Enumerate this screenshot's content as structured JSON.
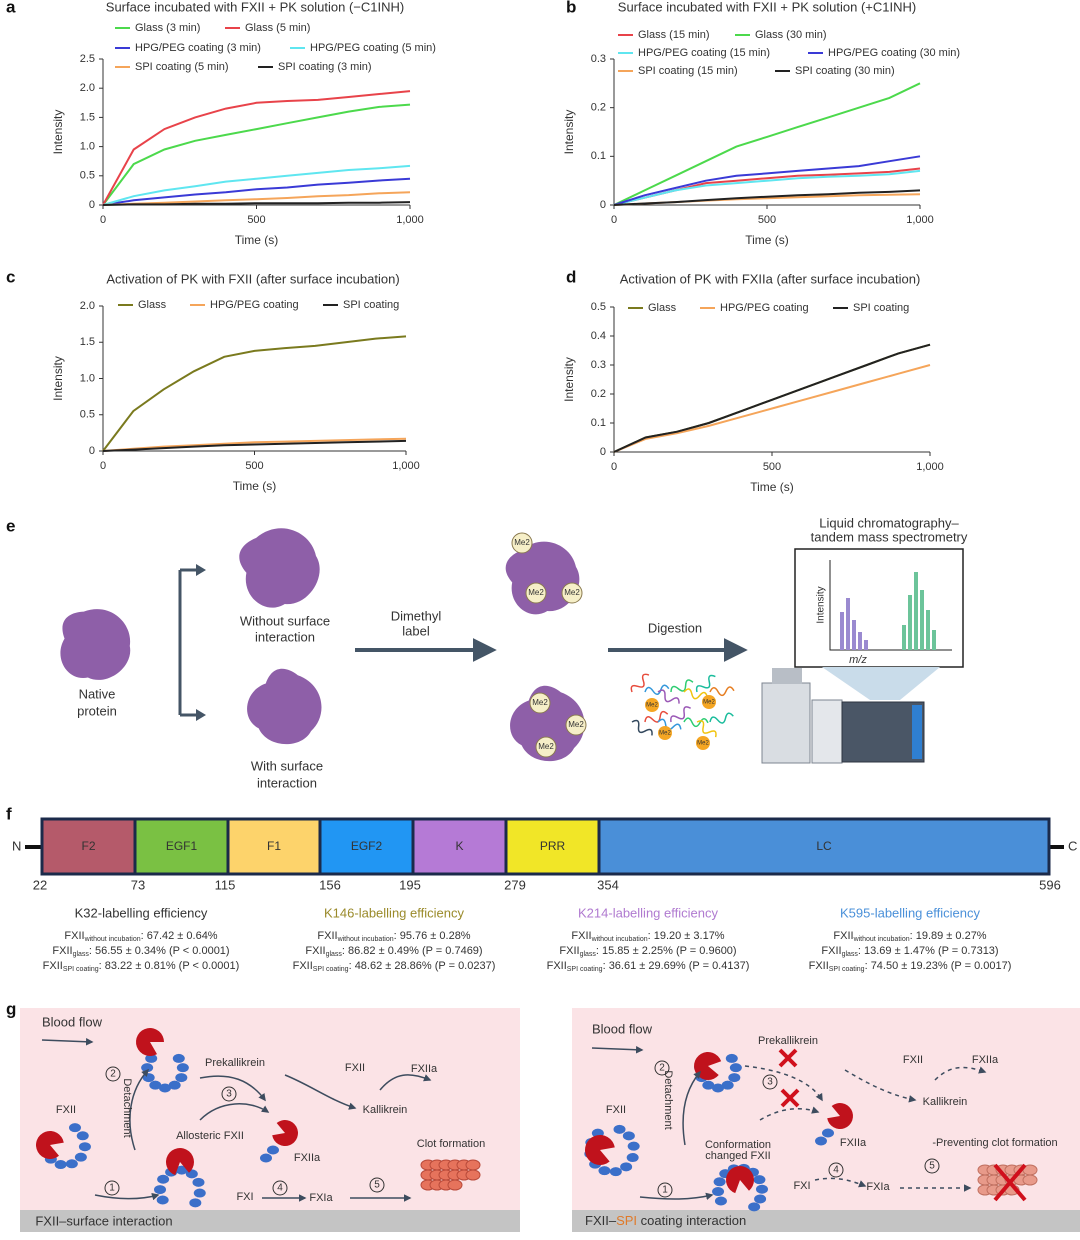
{
  "panel_labels": [
    "a",
    "b",
    "c",
    "d",
    "e",
    "f",
    "g"
  ],
  "chart_data": [
    {
      "type": "line",
      "title": "Surface incubated with FXII + PK solution (−C1INH)",
      "xlabel": "Time (s)",
      "ylabel": "Intensity",
      "x": [
        0,
        100,
        200,
        300,
        400,
        500,
        600,
        700,
        800,
        900,
        1000
      ],
      "xlim": [
        0,
        1000
      ],
      "xticks": [
        0,
        500,
        {
          "value": 1000,
          "label": "1,000"
        }
      ],
      "ylim": [
        0,
        2.5
      ],
      "yticks": [
        0,
        0.5,
        {
          "value": 1,
          "label": "1.0"
        },
        1.5,
        {
          "value": 2,
          "label": "2.0"
        },
        2.5
      ],
      "series": [
        {
          "name": "Glass (3 min)",
          "color": "#4cd94c",
          "values": [
            0,
            0.7,
            0.95,
            1.1,
            1.2,
            1.3,
            1.4,
            1.5,
            1.6,
            1.68,
            1.72
          ]
        },
        {
          "name": "Glass (5 min)",
          "color": "#e8434a",
          "values": [
            0,
            0.95,
            1.3,
            1.5,
            1.65,
            1.75,
            1.78,
            1.8,
            1.85,
            1.9,
            1.95
          ]
        },
        {
          "name": "HPG/PEG coating (3 min)",
          "color": "#3a3ad6",
          "values": [
            0,
            0.08,
            0.13,
            0.18,
            0.22,
            0.27,
            0.3,
            0.35,
            0.38,
            0.42,
            0.45
          ]
        },
        {
          "name": "HPG/PEG coating (5 min)",
          "color": "#5fe6f0",
          "values": [
            0,
            0.15,
            0.25,
            0.32,
            0.4,
            0.45,
            0.5,
            0.55,
            0.6,
            0.63,
            0.67
          ]
        },
        {
          "name": "SPI coating (5 min)",
          "color": "#f5a55a",
          "values": [
            0,
            0.02,
            0.04,
            0.06,
            0.08,
            0.1,
            0.12,
            0.15,
            0.17,
            0.2,
            0.22
          ]
        },
        {
          "name": "SPI coating (3 min)",
          "color": "#222222",
          "values": [
            0,
            0.01,
            0.01,
            0.02,
            0.02,
            0.03,
            0.03,
            0.03,
            0.04,
            0.04,
            0.05
          ]
        }
      ]
    },
    {
      "type": "line",
      "title": "Surface incubated with FXII + PK solution (+C1INH)",
      "xlabel": "Time (s)",
      "ylabel": "Intensity",
      "x": [
        0,
        100,
        200,
        300,
        400,
        500,
        600,
        700,
        800,
        900,
        1000
      ],
      "xlim": [
        0,
        1000
      ],
      "xticks": [
        0,
        500,
        {
          "value": 1000,
          "label": "1,000"
        }
      ],
      "ylim": [
        0,
        0.3
      ],
      "yticks": [
        0,
        0.1,
        0.2,
        0.3
      ],
      "series": [
        {
          "name": "Glass (15 min)",
          "color": "#e8434a",
          "values": [
            0,
            0.015,
            0.03,
            0.045,
            0.05,
            0.055,
            0.06,
            0.062,
            0.065,
            0.068,
            0.075
          ]
        },
        {
          "name": "Glass (30 min)",
          "color": "#4cd94c",
          "values": [
            0,
            0.03,
            0.06,
            0.09,
            0.12,
            0.14,
            0.16,
            0.18,
            0.2,
            0.22,
            0.25
          ]
        },
        {
          "name": "HPG/PEG coating (15 min)",
          "color": "#5fe6f0",
          "values": [
            0,
            0.015,
            0.03,
            0.04,
            0.045,
            0.05,
            0.055,
            0.058,
            0.06,
            0.063,
            0.07
          ]
        },
        {
          "name": "HPG/PEG coating (30 min)",
          "color": "#3a3ad6",
          "values": [
            0,
            0.02,
            0.035,
            0.05,
            0.06,
            0.065,
            0.07,
            0.075,
            0.08,
            0.09,
            0.1
          ]
        },
        {
          "name": "SPI coating (15 min)",
          "color": "#f5a55a",
          "values": [
            0,
            0.003,
            0.006,
            0.009,
            0.012,
            0.014,
            0.016,
            0.018,
            0.02,
            0.021,
            0.022
          ]
        },
        {
          "name": "SPI coating (30 min)",
          "color": "#222222",
          "values": [
            0,
            0.003,
            0.006,
            0.01,
            0.014,
            0.017,
            0.02,
            0.022,
            0.025,
            0.027,
            0.03
          ]
        }
      ]
    },
    {
      "type": "line",
      "title": "Activation of PK with FXII (after surface incubation)",
      "xlabel": "Time (s)",
      "ylabel": "Intensity",
      "x": [
        0,
        100,
        200,
        300,
        400,
        500,
        600,
        700,
        800,
        900,
        1000
      ],
      "xlim": [
        0,
        1000
      ],
      "xticks": [
        0,
        500,
        {
          "value": 1000,
          "label": "1,000"
        }
      ],
      "ylim": [
        0,
        2
      ],
      "yticks": [
        0,
        0.5,
        {
          "value": 1,
          "label": "1.0"
        },
        1.5,
        {
          "value": 2,
          "label": "2.0"
        }
      ],
      "series": [
        {
          "name": "Glass",
          "color": "#7a7a1e",
          "values": [
            0,
            0.55,
            0.85,
            1.1,
            1.3,
            1.38,
            1.42,
            1.45,
            1.5,
            1.55,
            1.58
          ]
        },
        {
          "name": "HPG/PEG coating",
          "color": "#f5a55a",
          "values": [
            0,
            0.03,
            0.06,
            0.08,
            0.1,
            0.12,
            0.13,
            0.14,
            0.15,
            0.16,
            0.17
          ]
        },
        {
          "name": "SPI coating",
          "color": "#222222",
          "values": [
            0,
            0.02,
            0.04,
            0.06,
            0.08,
            0.09,
            0.1,
            0.11,
            0.12,
            0.13,
            0.14
          ]
        }
      ]
    },
    {
      "type": "line",
      "title": "Activation of PK with FXIIa (after surface incubation)",
      "xlabel": "Time (s)",
      "ylabel": "Intensity",
      "x": [
        0,
        100,
        200,
        300,
        400,
        500,
        600,
        700,
        800,
        900,
        1000
      ],
      "xlim": [
        0,
        1000
      ],
      "xticks": [
        0,
        500,
        {
          "value": 1000,
          "label": "1,000"
        }
      ],
      "ylim": [
        0,
        0.5
      ],
      "yticks": [
        0,
        0.1,
        0.2,
        0.3,
        0.4,
        0.5
      ],
      "series": [
        {
          "name": "Glass",
          "color": "#7a7a1e",
          "values": [
            0,
            0.05,
            0.07,
            0.1,
            0.14,
            0.18,
            0.22,
            0.26,
            0.3,
            0.34,
            0.37
          ]
        },
        {
          "name": "HPG/PEG coating",
          "color": "#f5a55a",
          "values": [
            0,
            0.045,
            0.065,
            0.09,
            0.12,
            0.15,
            0.18,
            0.21,
            0.24,
            0.27,
            0.3
          ]
        },
        {
          "name": "SPI coating",
          "color": "#222222",
          "values": [
            0,
            0.05,
            0.07,
            0.1,
            0.14,
            0.18,
            0.22,
            0.26,
            0.3,
            0.34,
            0.37
          ]
        }
      ]
    }
  ],
  "panel_e": {
    "native": [
      "Native",
      "protein"
    ],
    "without": [
      "Without surface",
      "interaction"
    ],
    "with": [
      "With surface",
      "interaction"
    ],
    "dimethyl": [
      "Dimethyl",
      "label"
    ],
    "me2": "Me2",
    "digestion": "Digestion",
    "lcms": [
      "Liquid chromatography–",
      "tandem mass spectrometry"
    ],
    "inset_y": "Intensity",
    "inset_x": "m/z"
  },
  "panel_f": {
    "n": "N",
    "c": "C",
    "domains": [
      "F2",
      "EGF1",
      "F1",
      "EGF2",
      "K",
      "PRR",
      "LC"
    ],
    "colors": [
      "#b55a6a",
      "#7ac143",
      "#fdd36b",
      "#2196f3",
      "#b57ad6",
      "#f1e627",
      "#4a8fd8"
    ],
    "boundaries": [
      22,
      73,
      115,
      156,
      195,
      279,
      354,
      596
    ],
    "efficiency": [
      {
        "title": "K32-labelling efficiency",
        "color": "#333333",
        "rows": [
          {
            "base": "FXII",
            "sub": "without incubation",
            "text": ": 67.42 ± 0.64%"
          },
          {
            "base": "FXII",
            "sub": "glass",
            "text": ": 56.55 ± 0.34% (P < 0.0001)"
          },
          {
            "base": "FXII",
            "sub": "SPI coating",
            "text": ": 83.22 ± 0.81% (P < 0.0001)"
          }
        ]
      },
      {
        "title": "K146-labelling efficiency",
        "color": "#9a8a2a",
        "rows": [
          {
            "base": "FXII",
            "sub": "without incubation",
            "text": ": 95.76 ± 0.28%"
          },
          {
            "base": "FXII",
            "sub": "glass",
            "text": ": 86.82 ± 0.49% (P = 0.7469)"
          },
          {
            "base": "FXII",
            "sub": "SPI coating",
            "text": ": 48.62 ± 28.86% (P = 0.0237)"
          }
        ]
      },
      {
        "title": "K214-labelling efficiency",
        "color": "#b07ad0",
        "rows": [
          {
            "base": "FXII",
            "sub": "without incubation",
            "text": ": 19.20 ± 3.17%"
          },
          {
            "base": "FXII",
            "sub": "glass",
            "text": ": 15.85 ± 2.25% (P = 0.9600)"
          },
          {
            "base": "FXII",
            "sub": "SPI coating",
            "text": ": 36.61 ± 29.69% (P = 0.4137)"
          }
        ]
      },
      {
        "title": "K595-labelling efficiency",
        "color": "#4a90d9",
        "rows": [
          {
            "base": "FXII",
            "sub": "without incubation",
            "text": ": 19.89 ± 0.27%"
          },
          {
            "base": "FXII",
            "sub": "glass",
            "text": ": 13.69 ± 1.47% (P = 0.7313)"
          },
          {
            "base": "FXII",
            "sub": "SPI coating",
            "text": ": 74.50 ± 19.23% (P = 0.0017)"
          }
        ]
      }
    ]
  },
  "panel_g": {
    "left": {
      "blood_flow": "Blood flow",
      "fxii": "FXII",
      "detachment": "Detachment",
      "prekallikrein": "Prekallikrein",
      "fxii2": "FXII",
      "fxiia": "FXIIa",
      "kallikrein": "Kallikrein",
      "allosteric": "Allosteric FXII",
      "fxiia2": "FXIIa",
      "clot": "Clot formation",
      "fxi": "FXI",
      "fxia": "FXIa",
      "steps": [
        1,
        2,
        3,
        4,
        5
      ],
      "footer": "FXII–surface interaction"
    },
    "right": {
      "blood_flow": "Blood flow",
      "fxii": "FXII",
      "detachment": "Detachment",
      "prekallikrein": "Prekallikrein",
      "fxii2": "FXII",
      "fxiia": "FXIIa",
      "kallikrein": "Kallikrein",
      "conformation": [
        "Conformation",
        "changed FXII"
      ],
      "fxiia2": "FXIIa",
      "prevent": "-Preventing clot formation",
      "fxi": "FXI",
      "fxia": "FXIa",
      "steps": [
        1,
        2,
        3,
        4,
        5
      ],
      "footer": [
        "FXII–",
        "SPI",
        " coating interaction"
      ],
      "footer_color": "#e07a2a"
    }
  }
}
